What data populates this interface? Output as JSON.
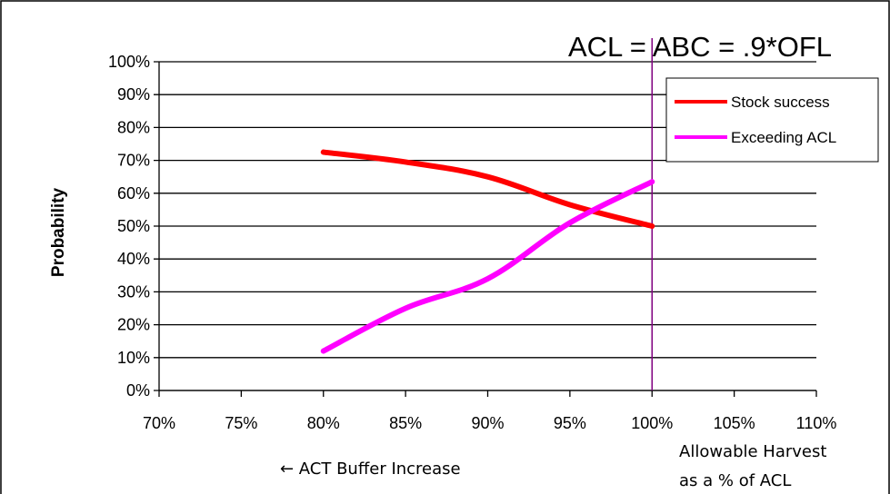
{
  "chart_data": {
    "type": "line",
    "title": "ACL = ABC = .9*OFL",
    "ylabel": "Probability",
    "xlabel": "",
    "x_ticks": [
      "70%",
      "75%",
      "80%",
      "85%",
      "90%",
      "95%",
      "100%",
      "105%",
      "110%"
    ],
    "y_ticks": [
      "0%",
      "10%",
      "20%",
      "30%",
      "40%",
      "50%",
      "60%",
      "70%",
      "80%",
      "90%",
      "100%"
    ],
    "xlim": [
      70,
      110
    ],
    "ylim": [
      0,
      100
    ],
    "grid": "horizontal",
    "legend_position": "top-right",
    "reference_line": {
      "x": 100,
      "color": "#800080"
    },
    "series": [
      {
        "name": "Stock success",
        "color": "#ff0000",
        "x": [
          80,
          85,
          90,
          95,
          100
        ],
        "y": [
          72.5,
          69.5,
          65,
          56.5,
          50
        ]
      },
      {
        "name": "Exceeding ACL",
        "color": "#ff00ff",
        "x": [
          80,
          85,
          90,
          95,
          100
        ],
        "y": [
          12,
          25,
          34,
          51,
          63.5
        ]
      }
    ],
    "annotations": {
      "left_arrow": "← ACT Buffer Increase",
      "right_line1": "Allowable Harvest",
      "right_line2": "as a % of ACL"
    }
  }
}
